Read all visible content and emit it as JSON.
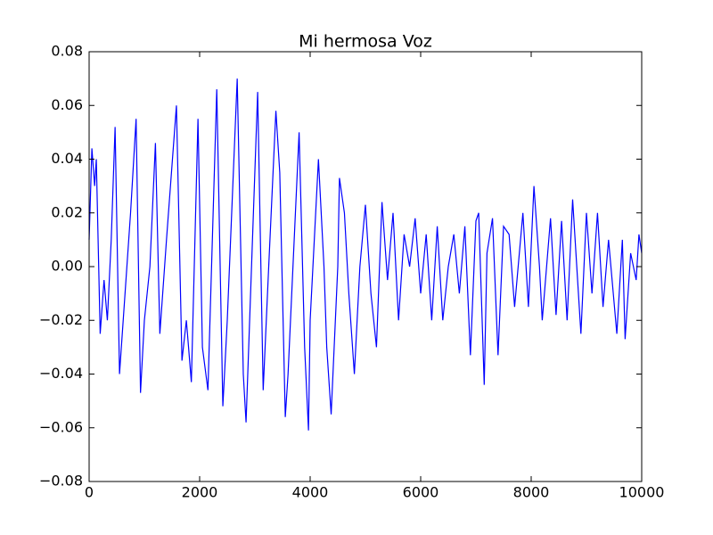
{
  "chart_data": {
    "type": "line",
    "title": "Mi hermosa Voz",
    "x": [
      0,
      50,
      100,
      130,
      200,
      270,
      330,
      400,
      470,
      550,
      650,
      750,
      850,
      930,
      1000,
      1100,
      1200,
      1280,
      1400,
      1580,
      1680,
      1760,
      1850,
      1970,
      2050,
      2150,
      2310,
      2420,
      2500,
      2680,
      2790,
      2840,
      3050,
      3150,
      3250,
      3380,
      3450,
      3550,
      3600,
      3800,
      3900,
      3970,
      4000,
      4150,
      4250,
      4300,
      4380,
      4500,
      4530,
      4620,
      4700,
      4800,
      4900,
      5000,
      5100,
      5200,
      5300,
      5400,
      5500,
      5600,
      5700,
      5800,
      5900,
      6000,
      6100,
      6200,
      6300,
      6400,
      6500,
      6600,
      6700,
      6800,
      6900,
      7000,
      7050,
      7150,
      7200,
      7300,
      7400,
      7500,
      7600,
      7700,
      7850,
      7950,
      8050,
      8150,
      8200,
      8350,
      8450,
      8550,
      8650,
      8750,
      8900,
      9000,
      9100,
      9200,
      9300,
      9400,
      9550,
      9650,
      9700,
      9800,
      9900,
      9950,
      10000
    ],
    "series": [
      {
        "color": "#0000ff",
        "values": [
          0.01,
          0.044,
          0.03,
          0.04,
          -0.025,
          -0.005,
          -0.02,
          0.01,
          0.052,
          -0.04,
          -0.01,
          0.02,
          0.055,
          -0.047,
          -0.02,
          0.0,
          0.046,
          -0.025,
          0.01,
          0.06,
          -0.035,
          -0.02,
          -0.043,
          0.055,
          -0.03,
          -0.046,
          0.066,
          -0.052,
          -0.02,
          0.07,
          -0.04,
          -0.058,
          0.065,
          -0.046,
          0.0,
          0.058,
          0.035,
          -0.056,
          -0.04,
          0.05,
          -0.03,
          -0.061,
          -0.02,
          0.04,
          0.0,
          -0.03,
          -0.055,
          0.0,
          0.033,
          0.02,
          -0.01,
          -0.04,
          0.0,
          0.023,
          -0.01,
          -0.03,
          0.024,
          -0.005,
          0.02,
          -0.02,
          0.012,
          0.0,
          0.018,
          -0.01,
          0.012,
          -0.02,
          0.015,
          -0.02,
          0.0,
          0.012,
          -0.01,
          0.015,
          -0.033,
          0.017,
          0.02,
          -0.044,
          0.005,
          0.018,
          -0.033,
          0.015,
          0.012,
          -0.015,
          0.02,
          -0.015,
          0.03,
          0.0,
          -0.02,
          0.018,
          -0.018,
          0.017,
          -0.02,
          0.025,
          -0.025,
          0.02,
          -0.01,
          0.02,
          -0.015,
          0.01,
          -0.025,
          0.01,
          -0.027,
          0.005,
          -0.005,
          0.012,
          0.005
        ]
      }
    ],
    "xlim": [
      0,
      10000
    ],
    "xticks": [
      0,
      2000,
      4000,
      6000,
      8000,
      10000
    ],
    "ylim": [
      -0.08,
      0.08
    ],
    "yticks": [
      {
        "value": -0.08,
        "label": "−0.08"
      },
      {
        "value": -0.06,
        "label": "−0.06"
      },
      {
        "value": -0.04,
        "label": "−0.04"
      },
      {
        "value": -0.02,
        "label": "−0.02"
      },
      {
        "value": 0,
        "label": "0.00"
      },
      0.02,
      0.04,
      0.06,
      0.08
    ],
    "grid": false
  }
}
